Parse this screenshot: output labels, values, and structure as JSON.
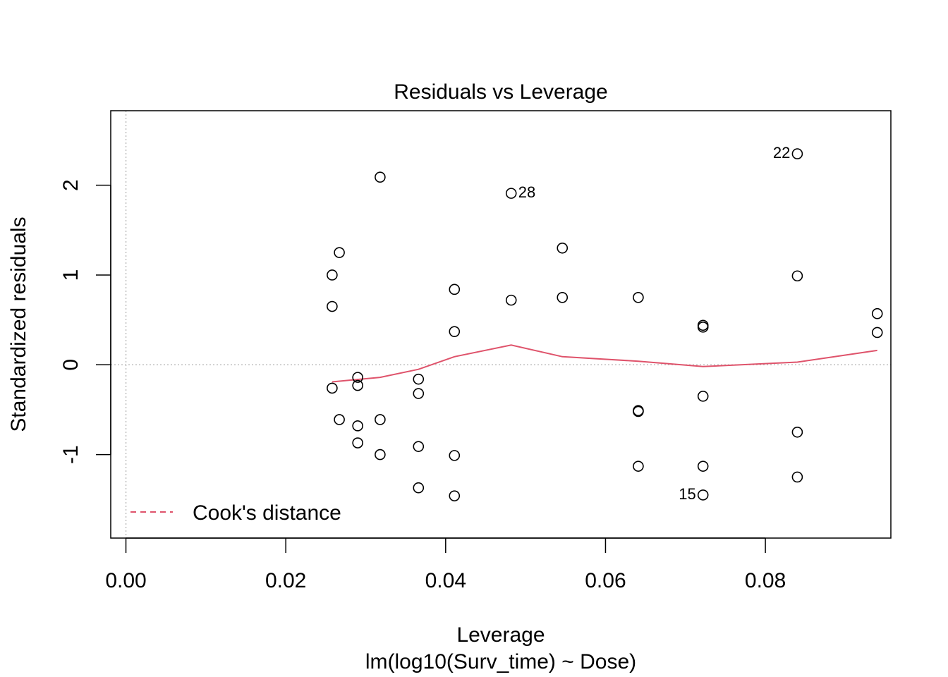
{
  "chart_data": {
    "type": "scatter",
    "title": "Residuals vs Leverage",
    "xlabel": "Leverage",
    "subtitle": "lm(log10(Surv_time) ~ Dose)",
    "ylabel": "Standardized residuals",
    "xlim": [
      -0.0019,
      0.0957
    ],
    "ylim": [
      -1.93,
      2.83
    ],
    "x_ticks": [
      0.0,
      0.02,
      0.04,
      0.06,
      0.08
    ],
    "x_tick_labels": [
      "0.00",
      "0.02",
      "0.04",
      "0.06",
      "0.08"
    ],
    "y_ticks": [
      -1,
      0,
      1,
      2
    ],
    "y_tick_labels": [
      "-1",
      "0",
      "1",
      "2"
    ],
    "grid": false,
    "reference_lines": {
      "x": 0,
      "y": 0,
      "style": "dotted",
      "color": "#bebebe"
    },
    "points": [
      {
        "x": 0.0258,
        "y": 1.0
      },
      {
        "x": 0.0258,
        "y": 0.65
      },
      {
        "x": 0.0258,
        "y": -0.26
      },
      {
        "x": 0.0267,
        "y": 1.25
      },
      {
        "x": 0.0267,
        "y": -0.61
      },
      {
        "x": 0.029,
        "y": -0.14
      },
      {
        "x": 0.029,
        "y": -0.23
      },
      {
        "x": 0.029,
        "y": -0.68
      },
      {
        "x": 0.029,
        "y": -0.87
      },
      {
        "x": 0.0318,
        "y": 2.09
      },
      {
        "x": 0.0318,
        "y": -0.61
      },
      {
        "x": 0.0318,
        "y": -1.0
      },
      {
        "x": 0.0366,
        "y": -0.16
      },
      {
        "x": 0.0366,
        "y": -0.32
      },
      {
        "x": 0.0366,
        "y": -0.91
      },
      {
        "x": 0.0366,
        "y": -1.37
      },
      {
        "x": 0.0411,
        "y": 0.84
      },
      {
        "x": 0.0411,
        "y": 0.37
      },
      {
        "x": 0.0411,
        "y": -1.01
      },
      {
        "x": 0.0411,
        "y": -1.46
      },
      {
        "x": 0.0482,
        "y": 1.91,
        "label": "28"
      },
      {
        "x": 0.0482,
        "y": 0.72
      },
      {
        "x": 0.0546,
        "y": 1.3
      },
      {
        "x": 0.0546,
        "y": 0.75
      },
      {
        "x": 0.0641,
        "y": 0.75
      },
      {
        "x": 0.0641,
        "y": -0.51
      },
      {
        "x": 0.0641,
        "y": -0.52
      },
      {
        "x": 0.0641,
        "y": -1.13
      },
      {
        "x": 0.0722,
        "y": 0.44
      },
      {
        "x": 0.0722,
        "y": 0.42
      },
      {
        "x": 0.0722,
        "y": -0.35
      },
      {
        "x": 0.0722,
        "y": -1.13
      },
      {
        "x": 0.0722,
        "y": -1.45,
        "label": "15"
      },
      {
        "x": 0.084,
        "y": 2.35,
        "label": "22"
      },
      {
        "x": 0.084,
        "y": 0.99
      },
      {
        "x": 0.084,
        "y": -0.75
      },
      {
        "x": 0.084,
        "y": -1.25
      },
      {
        "x": 0.094,
        "y": 0.57
      },
      {
        "x": 0.094,
        "y": 0.36
      }
    ],
    "smooth_line": {
      "color": "#DF536B",
      "x": [
        0.0258,
        0.0318,
        0.0366,
        0.0411,
        0.0482,
        0.0546,
        0.0641,
        0.0722,
        0.084,
        0.094
      ],
      "y": [
        -0.19,
        -0.14,
        -0.05,
        0.09,
        0.22,
        0.09,
        0.04,
        -0.02,
        0.03,
        0.16
      ]
    },
    "legend": {
      "position": "bottom-left",
      "entries": [
        {
          "label": "Cook's distance",
          "color": "#DF536B",
          "style": "dashed"
        }
      ]
    }
  }
}
